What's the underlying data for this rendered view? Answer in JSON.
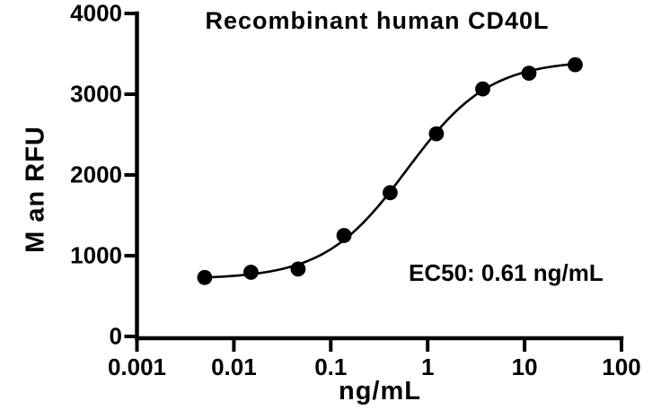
{
  "chart_data": {
    "type": "scatter",
    "title": "Recombinant human CD40L",
    "xlabel": "ng/mL",
    "ylabel": "M an RFU",
    "annotation": "EC50: 0.61 ng/mL",
    "ec50_ng_ml": 0.61,
    "x_scale": "log10",
    "xlim": [
      0.001,
      100
    ],
    "ylim": [
      0,
      4000
    ],
    "x_ticks": [
      {
        "value": 0.001,
        "label": "0.001"
      },
      {
        "value": 0.01,
        "label": "0.01"
      },
      {
        "value": 0.1,
        "label": "0.1"
      },
      {
        "value": 1,
        "label": "1"
      },
      {
        "value": 10,
        "label": "10"
      },
      {
        "value": 100,
        "label": "100"
      }
    ],
    "y_ticks": [
      {
        "value": 0,
        "label": "0"
      },
      {
        "value": 1000,
        "label": "1000"
      },
      {
        "value": 2000,
        "label": "2000"
      },
      {
        "value": 3000,
        "label": "3000"
      },
      {
        "value": 4000,
        "label": "4000"
      }
    ],
    "grid": false,
    "legend": false,
    "colors": {
      "background": "#ffffff",
      "axis": "#000000",
      "marker": "#000000",
      "curve": "#000000",
      "text": "#000000"
    },
    "series": [
      {
        "name": "Recombinant human CD40L",
        "marker": "filled-circle",
        "x_ng_ml": [
          0.005,
          0.015,
          0.046,
          0.137,
          0.41,
          1.23,
          3.7,
          11.1,
          33.3
        ],
        "y_rfu": [
          730,
          795,
          835,
          1250,
          1780,
          2510,
          3065,
          3260,
          3365
        ]
      }
    ],
    "fit_curve": {
      "model": "4PL-sigmoid",
      "bottom": 710,
      "top": 3420,
      "ec50": 0.61,
      "hill": 1.02
    }
  }
}
